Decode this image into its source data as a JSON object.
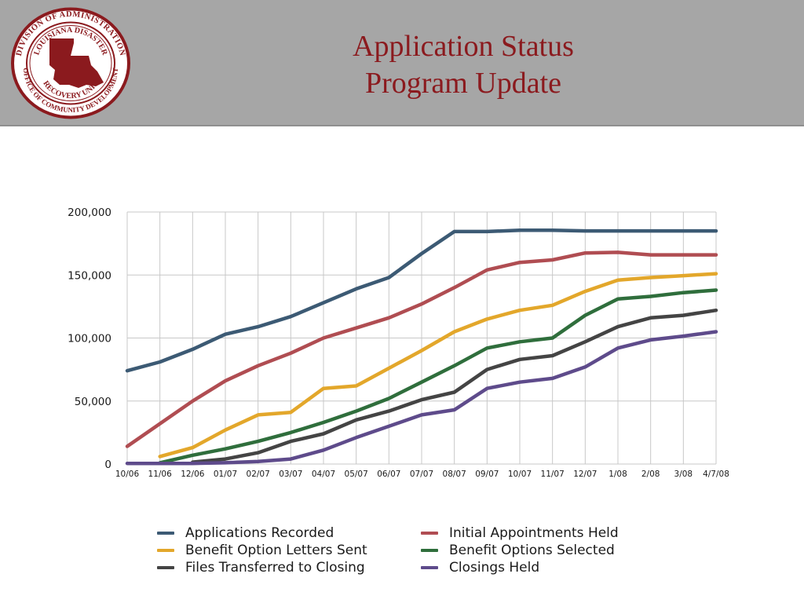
{
  "header": {
    "title_line1": "Application Status",
    "title_line2": "Program Update",
    "seal": {
      "ring_text_top": "DIVISION OF ADMINISTRATION",
      "ring_text_bottom": "OFFICE OF COMMUNITY DEVELOPMENT",
      "inner_text_top": "LOUISIANA DISASTER",
      "inner_text_bottom": "RECOVERY UNIT",
      "color": "#8b1a1e"
    }
  },
  "chart_data": {
    "type": "line",
    "title": "",
    "xlabel": "",
    "ylabel": "",
    "x": [
      "10/06",
      "11/06",
      "12/06",
      "01/07",
      "02/07",
      "03/07",
      "04/07",
      "05/07",
      "06/07",
      "07/07",
      "08/07",
      "09/07",
      "10/07",
      "11/07",
      "12/07",
      "1/08",
      "2/08",
      "3/08",
      "4/7/08"
    ],
    "ylim": [
      0,
      200000
    ],
    "yticks": [
      0,
      50000,
      100000,
      150000,
      200000
    ],
    "ytick_labels": [
      "0",
      "50,000",
      "100,000",
      "150,000",
      "200,000"
    ],
    "grid": true,
    "legend_position": "bottom",
    "series": [
      {
        "name": "Applications Recorded",
        "color": "#3c5a74",
        "values": [
          74000,
          81000,
          91000,
          103000,
          109000,
          117000,
          128000,
          139000,
          148000,
          167000,
          184500,
          184500,
          185500,
          185500,
          185000,
          185000,
          185000,
          185000,
          185000
        ]
      },
      {
        "name": "Initial Appointments Held",
        "color": "#b04d52",
        "values": [
          14000,
          32000,
          50000,
          66000,
          78000,
          88000,
          100000,
          108000,
          116000,
          127000,
          140000,
          154000,
          160000,
          162000,
          167500,
          168000,
          166000,
          166000,
          166000
        ]
      },
      {
        "name": "Benefit Option Letters Sent",
        "color": "#e3a72b",
        "values": [
          null,
          6000,
          13000,
          27000,
          39000,
          41000,
          60000,
          62000,
          76000,
          90000,
          105000,
          115000,
          122000,
          126000,
          137000,
          146000,
          148000,
          149500,
          151000
        ]
      },
      {
        "name": "Benefit Options Selected",
        "color": "#2f6e3c",
        "values": [
          null,
          1000,
          7000,
          12000,
          18000,
          25000,
          33000,
          42000,
          52000,
          65000,
          78000,
          92000,
          97000,
          100000,
          118000,
          131000,
          133000,
          136000,
          138000
        ]
      },
      {
        "name": "Files Transferred to Closing",
        "color": "#444444",
        "values": [
          null,
          null,
          1500,
          4000,
          9000,
          18000,
          24000,
          35000,
          42000,
          51000,
          57000,
          75000,
          83000,
          86000,
          97000,
          109000,
          116000,
          118000,
          122000
        ]
      },
      {
        "name": "Closings Held",
        "color": "#5e4b8b",
        "values": [
          500,
          500,
          500,
          1000,
          2000,
          4000,
          11000,
          21000,
          30000,
          39000,
          43000,
          60000,
          65000,
          68000,
          77000,
          92000,
          98500,
          101500,
          105000
        ]
      }
    ]
  }
}
